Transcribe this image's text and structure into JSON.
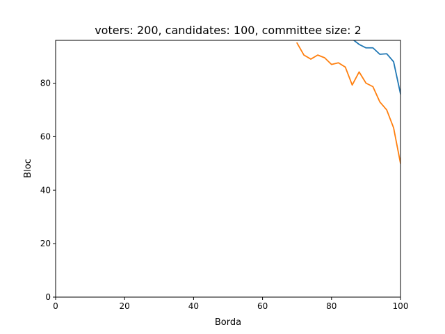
{
  "chart_data": {
    "type": "line",
    "title": "voters: 200, candidates: 100, committee size: 2",
    "xlabel": "Borda",
    "ylabel": "Bloc",
    "xlim": [
      0,
      100
    ],
    "ylim": [
      0,
      96
    ],
    "xticks": [
      0,
      20,
      40,
      60,
      80,
      100
    ],
    "yticks": [
      0,
      20,
      40,
      60,
      80
    ],
    "grid": false,
    "legend": "none",
    "series": [
      {
        "color": "#1f77b4",
        "x": [
          84,
          86,
          88,
          90,
          92,
          94,
          96,
          98,
          100
        ],
        "y": [
          100,
          96.5,
          94.5,
          93.2,
          93.2,
          90.8,
          91.0,
          88.0,
          76.0
        ]
      },
      {
        "color": "#ff7f0e",
        "x": [
          70,
          72,
          74,
          76,
          78,
          80,
          82,
          84,
          86,
          88,
          90,
          92,
          94,
          96,
          98,
          100
        ],
        "y": [
          95.0,
          90.5,
          89.0,
          90.5,
          89.5,
          87.0,
          87.6,
          86.0,
          79.3,
          84.2,
          80.0,
          78.7,
          73.0,
          70.0,
          63.3,
          50.0
        ]
      }
    ]
  }
}
